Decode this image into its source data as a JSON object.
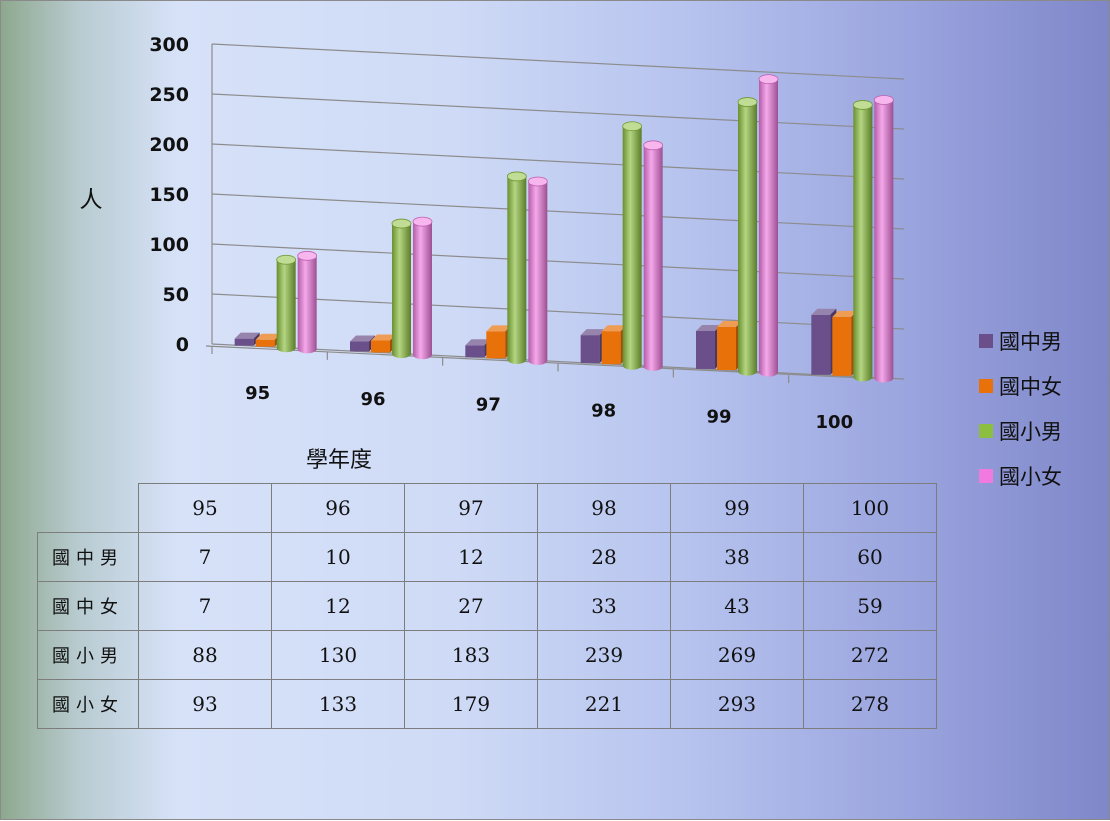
{
  "chart_data": {
    "type": "bar",
    "title": "",
    "xlabel": "學年度",
    "ylabel": "人",
    "ylim": [
      0,
      300
    ],
    "yticks": [
      0,
      50,
      100,
      150,
      200,
      250,
      300
    ],
    "categories": [
      "95",
      "96",
      "97",
      "98",
      "99",
      "100"
    ],
    "series": [
      {
        "name": "國中男",
        "values": [
          7,
          10,
          12,
          28,
          38,
          60
        ],
        "color": "#6b4f8a"
      },
      {
        "name": "國中女",
        "values": [
          7,
          12,
          27,
          33,
          43,
          59
        ],
        "color": "#e8710a"
      },
      {
        "name": "國小男",
        "values": [
          88,
          130,
          183,
          239,
          269,
          272
        ],
        "color": "#8cbf3f"
      },
      {
        "name": "國小女",
        "values": [
          93,
          133,
          179,
          221,
          293,
          278
        ],
        "color": "#f07ae0"
      }
    ],
    "grid": true,
    "legend_position": "right",
    "data_table": {
      "header": [
        "95",
        "96",
        "97",
        "98",
        "99",
        "100"
      ],
      "rows": [
        {
          "label": "國中男",
          "values": [
            "7",
            "10",
            "12",
            "28",
            "38",
            "60"
          ]
        },
        {
          "label": "國中女",
          "values": [
            "7",
            "12",
            "27",
            "33",
            "43",
            "59"
          ]
        },
        {
          "label": "國小男",
          "values": [
            "88",
            "130",
            "183",
            "239",
            "269",
            "272"
          ]
        },
        {
          "label": "國小女",
          "values": [
            "93",
            "133",
            "179",
            "221",
            "293",
            "278"
          ]
        }
      ]
    }
  }
}
